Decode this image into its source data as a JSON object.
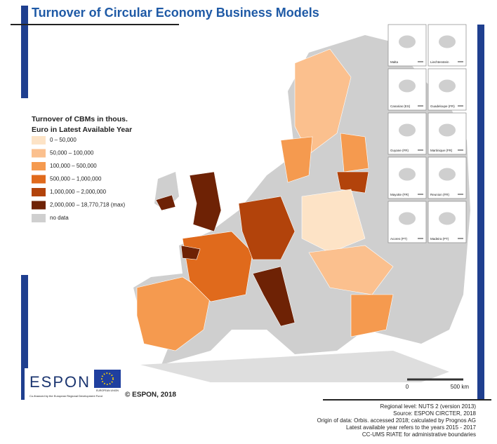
{
  "title": "Turnover of Circular Economy Business Models",
  "legend": {
    "title_lines": [
      "Turnover of CBMs in thous.",
      "Euro in Latest Available Year"
    ],
    "items": [
      {
        "label": "0 – 50,000",
        "color": "#fde3c6"
      },
      {
        "label": "50,000 – 100,000",
        "color": "#fbc08e"
      },
      {
        "label": "100,000 – 500,000",
        "color": "#f59a4f"
      },
      {
        "label": "500,000 – 1,000,000",
        "color": "#e06a1c"
      },
      {
        "label": "1,000,000 – 2,000,000",
        "color": "#b2430b"
      },
      {
        "label": "2,000,000 – 18,770,718 (max)",
        "color": "#6e2205"
      },
      {
        "label": "no data",
        "color": "#cfcfcf"
      }
    ]
  },
  "insets": [
    "Malta",
    "Liechtenstein",
    "Canarias (ES)",
    "Guadeloupe (FR)",
    "Guyane (FR)",
    "Martinique (FR)",
    "Mayotte (FR)",
    "Reunion (FR)",
    "Acores (PT)",
    "Madeira (PT)"
  ],
  "scale": {
    "start": "0",
    "end": "500 km"
  },
  "logo": {
    "name": "ESPON",
    "union": "EUROPEAN UNION",
    "cofinanced": "Co-financed by the European Regional Development Fund"
  },
  "copyright": "© ESPON, 2018",
  "notes": [
    "Regional level: NUTS 2 (version 2013)",
    "Source: ESPON CIRCTER, 2018",
    "Origin of data: Orbis. accessed 2018; calculated by Prognos AG",
    "Latest available year refers to the years 2015 - 2017",
    "CC-UMS RIATE for administrative boundaries"
  ]
}
